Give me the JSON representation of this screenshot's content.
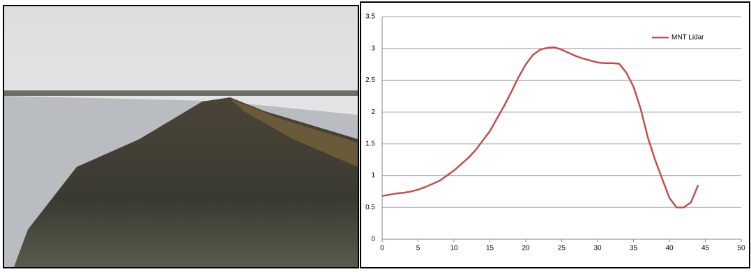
{
  "chart_data": {
    "type": "line",
    "x": [
      0,
      1,
      2,
      3,
      4,
      5,
      6,
      7,
      8,
      9,
      10,
      11,
      12,
      13,
      14,
      15,
      16,
      17,
      18,
      19,
      20,
      21,
      22,
      23,
      24,
      25,
      26,
      27,
      28,
      29,
      30,
      31,
      32,
      33,
      34,
      35,
      36,
      37,
      38,
      39,
      40,
      41,
      42,
      43,
      44
    ],
    "series": [
      {
        "name": "MNT Lidar",
        "color": "#c0504d",
        "values": [
          0.68,
          0.7,
          0.72,
          0.73,
          0.75,
          0.78,
          0.82,
          0.87,
          0.92,
          1.0,
          1.08,
          1.18,
          1.28,
          1.4,
          1.55,
          1.7,
          1.9,
          2.1,
          2.32,
          2.55,
          2.75,
          2.9,
          2.98,
          3.01,
          3.02,
          2.98,
          2.93,
          2.88,
          2.84,
          2.81,
          2.78,
          2.77,
          2.77,
          2.76,
          2.62,
          2.4,
          2.05,
          1.6,
          1.25,
          0.95,
          0.65,
          0.5,
          0.5,
          0.58,
          0.85
        ]
      }
    ],
    "xlim": [
      0,
      50
    ],
    "xticks": [
      0,
      5,
      10,
      15,
      20,
      25,
      30,
      35,
      40,
      45,
      50
    ],
    "ylim": [
      0,
      3.5
    ],
    "yticks": [
      0,
      0.5,
      1,
      1.5,
      2,
      2.5,
      3,
      3.5
    ],
    "grid": true,
    "legend": "upper-right"
  }
}
